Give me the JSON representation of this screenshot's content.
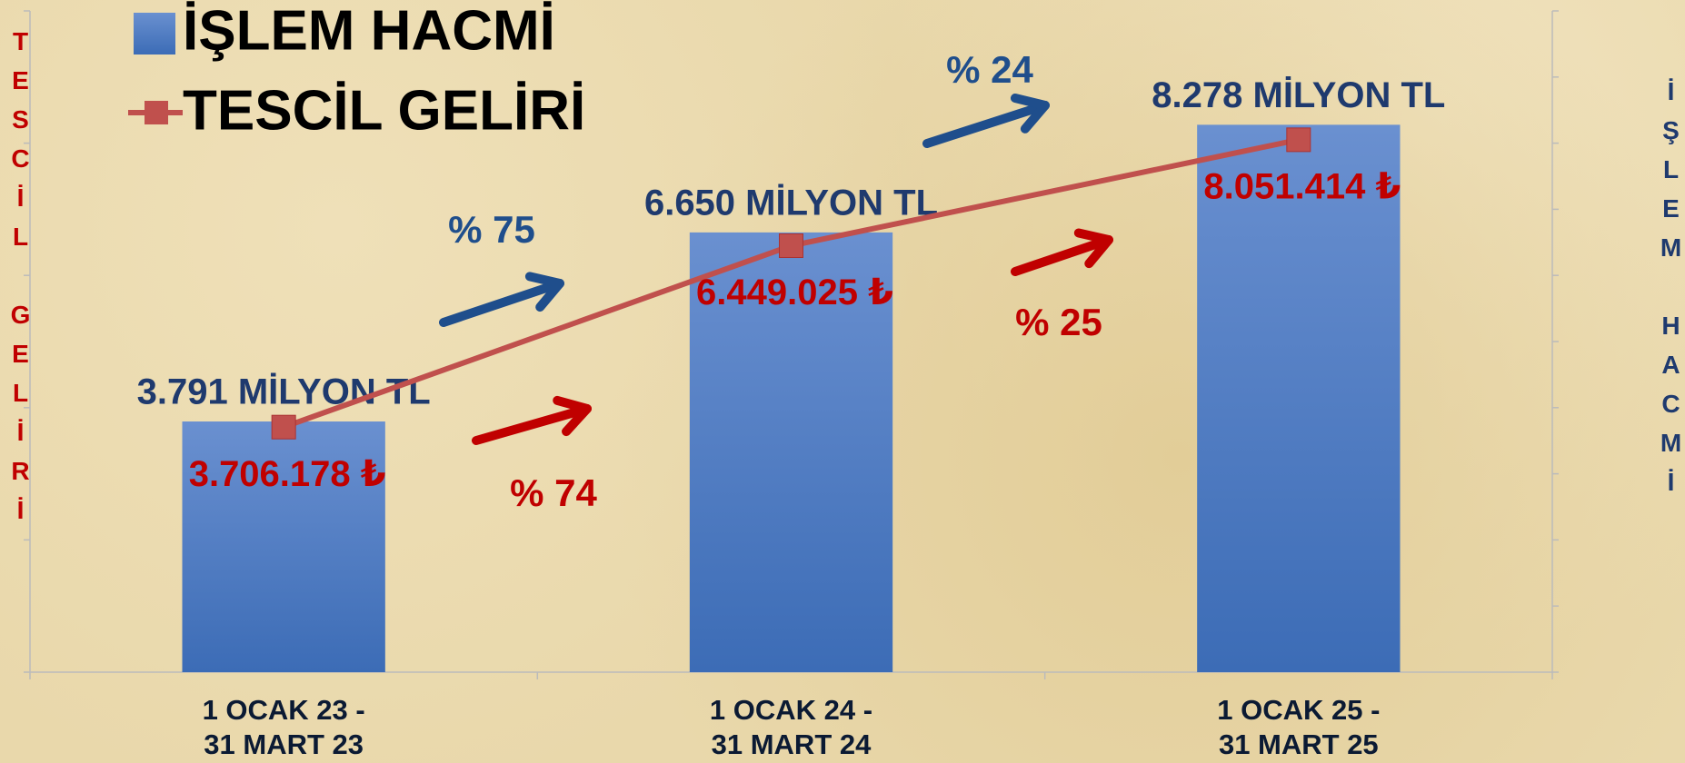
{
  "chart_data": {
    "type": "combo",
    "categories": [
      "1 OCAK 23 -\n31 MART 23",
      "1 OCAK 24 -\n31 MART 24",
      "1 OCAK 25 -\n31 MART 25"
    ],
    "series": [
      {
        "name": "İŞLEM HACMİ",
        "type": "bar",
        "axis": "y2",
        "color": "#4f7cc4",
        "values": [
          3791,
          6650,
          8278
        ],
        "value_labels": [
          "3.791 MİLYON TL",
          "6.650 MİLYON TL",
          "8.278 MİLYON TL"
        ]
      },
      {
        "name": "TESCİL GELİRİ",
        "type": "line",
        "axis": "y",
        "color": "#c0504d",
        "values": [
          3706178,
          6449025,
          8051414
        ],
        "value_labels": [
          "3.706.178 ₺",
          "6.449.025 ₺",
          "8.051.414 ₺"
        ]
      }
    ],
    "ylabel": "TESCİL GELİRİ",
    "y2label": "İŞLEM HACMİ",
    "ylim": [
      0,
      10000000
    ],
    "yticks": [
      0,
      2000000,
      4000000,
      6000000,
      8000000,
      10000000
    ],
    "y2lim": [
      0,
      10000
    ],
    "y2ticks": [
      0,
      1000,
      2000,
      3000,
      4000,
      5000,
      6000,
      7000,
      8000,
      9000,
      10000
    ],
    "legend": "upper left",
    "grid": false,
    "annotations": [
      {
        "text": "% 75",
        "color": "#1f4e8c"
      },
      {
        "text": "% 24",
        "color": "#1f4e8c"
      },
      {
        "text": "% 74",
        "color": "#c00000"
      },
      {
        "text": "% 25",
        "color": "#c00000"
      }
    ]
  }
}
